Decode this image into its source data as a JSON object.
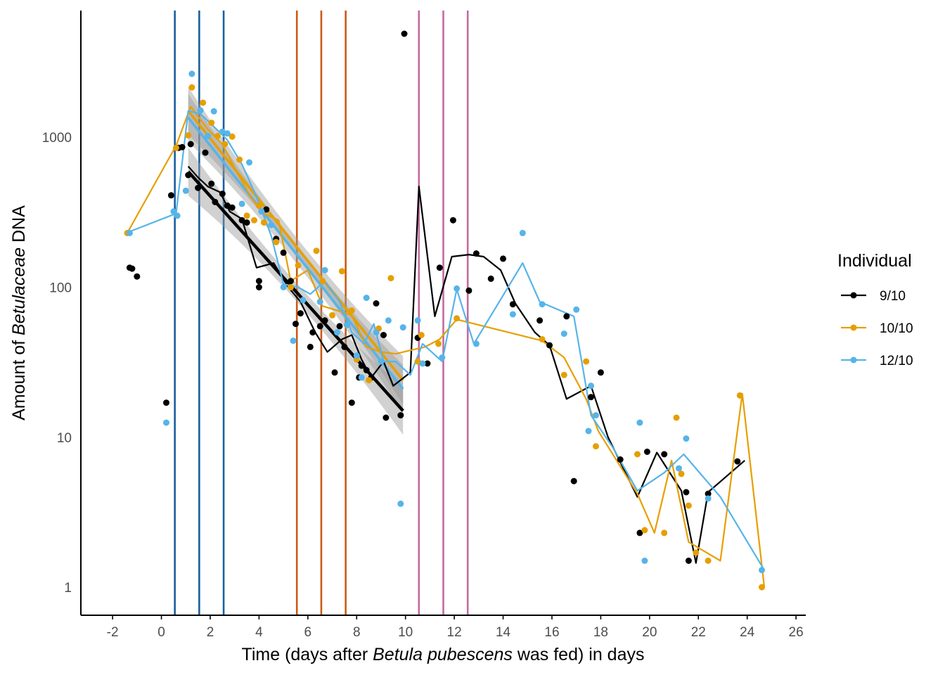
{
  "chart_data": {
    "type": "scatter",
    "xlabel": {
      "prefix": "Time (days after ",
      "italic": "Betula pubescens",
      "suffix": " was fed) in days"
    },
    "ylabel": {
      "prefix": "Amount of ",
      "italic": "Betulaceae",
      "suffix": " DNA"
    },
    "y_scale": "log10",
    "xlim": [
      -3.3,
      26.4
    ],
    "ylim": [
      0.65,
      7000
    ],
    "x_ticks": [
      -2,
      0,
      2,
      4,
      6,
      8,
      10,
      12,
      14,
      16,
      18,
      20,
      22,
      24,
      26
    ],
    "x_tick_labels": [
      "-2",
      "0",
      "2",
      "4",
      "6",
      "8",
      "10",
      "12",
      "14",
      "16",
      "18",
      "20",
      "22",
      "24",
      "26"
    ],
    "y_ticks": [
      1,
      10,
      100,
      1000
    ],
    "y_tick_labels": [
      "1",
      "10",
      "100",
      "1000"
    ],
    "grid": false,
    "legend": {
      "title": "Individual",
      "position": "right"
    },
    "vertical_lines": [
      {
        "x": 0.55,
        "color": "#1a5f9e"
      },
      {
        "x": 1.55,
        "color": "#1a5f9e"
      },
      {
        "x": 2.55,
        "color": "#1a5f9e"
      },
      {
        "x": 5.55,
        "color": "#cc5a14"
      },
      {
        "x": 6.55,
        "color": "#cc5a14"
      },
      {
        "x": 7.55,
        "color": "#cc5a14"
      },
      {
        "x": 10.55,
        "color": "#c46aa0"
      },
      {
        "x": 11.55,
        "color": "#c46aa0"
      },
      {
        "x": 12.55,
        "color": "#c46aa0"
      }
    ],
    "series": [
      {
        "name": "9/10",
        "color": "#000000",
        "points": [
          [
            -1.3,
            135
          ],
          [
            -1.2,
            133
          ],
          [
            -1.0,
            118
          ],
          [
            0.2,
            17
          ],
          [
            0.4,
            410
          ],
          [
            0.7,
            850
          ],
          [
            0.85,
            860
          ],
          [
            1.1,
            560
          ],
          [
            1.2,
            900
          ],
          [
            1.5,
            460
          ],
          [
            1.8,
            790
          ],
          [
            2.05,
            490
          ],
          [
            2.2,
            370
          ],
          [
            2.5,
            420
          ],
          [
            2.7,
            350
          ],
          [
            2.9,
            340
          ],
          [
            3.3,
            280
          ],
          [
            3.5,
            270
          ],
          [
            4.0,
            110
          ],
          [
            4.0,
            100
          ],
          [
            4.3,
            330
          ],
          [
            4.7,
            210
          ],
          [
            5.0,
            170
          ],
          [
            5.3,
            110
          ],
          [
            5.5,
            57
          ],
          [
            5.7,
            67
          ],
          [
            6.1,
            40
          ],
          [
            6.2,
            50
          ],
          [
            6.5,
            55
          ],
          [
            6.7,
            60
          ],
          [
            7.1,
            27
          ],
          [
            7.3,
            55
          ],
          [
            7.5,
            40
          ],
          [
            7.8,
            17
          ],
          [
            8.1,
            25
          ],
          [
            8.2,
            30
          ],
          [
            8.4,
            28
          ],
          [
            8.6,
            25
          ],
          [
            8.8,
            78
          ],
          [
            9.1,
            48
          ],
          [
            9.2,
            13.5
          ],
          [
            9.8,
            14
          ],
          [
            9.95,
            4900
          ],
          [
            10.5,
            46
          ],
          [
            10.9,
            31
          ],
          [
            11.4,
            135
          ],
          [
            11.95,
            280
          ],
          [
            12.6,
            95
          ],
          [
            12.9,
            168
          ],
          [
            13.5,
            114
          ],
          [
            14.0,
            155
          ],
          [
            14.4,
            77
          ],
          [
            15.5,
            60
          ],
          [
            15.9,
            41
          ],
          [
            16.6,
            64
          ],
          [
            16.9,
            5.1
          ],
          [
            17.6,
            18.5
          ],
          [
            18.0,
            27
          ],
          [
            18.8,
            7.1
          ],
          [
            19.6,
            2.3
          ],
          [
            19.9,
            8.0
          ],
          [
            20.6,
            7.7
          ],
          [
            21.5,
            4.3
          ],
          [
            21.6,
            1.5
          ],
          [
            22.4,
            4.2
          ],
          [
            23.6,
            6.9
          ]
        ],
        "line": [
          [
            1.1,
            640
          ],
          [
            1.5,
            540
          ],
          [
            1.9,
            470
          ],
          [
            2.4,
            430
          ],
          [
            2.8,
            320
          ],
          [
            3.3,
            285
          ],
          [
            3.9,
            135
          ],
          [
            4.6,
            145
          ],
          [
            5.2,
            100
          ],
          [
            5.7,
            80
          ],
          [
            6.3,
            50
          ],
          [
            6.8,
            37
          ],
          [
            7.4,
            45
          ],
          [
            7.8,
            48
          ],
          [
            8.2,
            33
          ],
          [
            8.6,
            25
          ],
          [
            9.1,
            32
          ],
          [
            9.5,
            22
          ],
          [
            10.2,
            27
          ],
          [
            10.55,
            470
          ],
          [
            11.2,
            64
          ],
          [
            11.9,
            160
          ],
          [
            12.6,
            165
          ],
          [
            13.2,
            160
          ],
          [
            13.9,
            130
          ],
          [
            14.5,
            78
          ],
          [
            15.3,
            50
          ],
          [
            15.9,
            41
          ],
          [
            16.6,
            18
          ],
          [
            17.6,
            22
          ],
          [
            18.3,
            10
          ],
          [
            19.5,
            4.0
          ],
          [
            20.3,
            7.9
          ],
          [
            21.3,
            4.4
          ],
          [
            21.9,
            1.45
          ],
          [
            22.4,
            4.3
          ],
          [
            23.9,
            7.0
          ]
        ],
        "fit": [
          [
            1.1,
            590
          ],
          [
            9.9,
            15
          ]
        ]
      },
      {
        "name": "10/10",
        "color": "#e69f00",
        "points": [
          [
            -1.4,
            230
          ],
          [
            0.6,
            850
          ],
          [
            1.1,
            1030
          ],
          [
            1.25,
            2150
          ],
          [
            1.7,
            1700
          ],
          [
            2.05,
            1250
          ],
          [
            2.3,
            1020
          ],
          [
            2.6,
            900
          ],
          [
            2.9,
            1010
          ],
          [
            3.2,
            710
          ],
          [
            3.5,
            300
          ],
          [
            3.8,
            280
          ],
          [
            4.0,
            350
          ],
          [
            4.2,
            270
          ],
          [
            4.7,
            200
          ],
          [
            5.3,
            100
          ],
          [
            5.6,
            140
          ],
          [
            6.35,
            175
          ],
          [
            6.6,
            110
          ],
          [
            7.0,
            65
          ],
          [
            7.4,
            128
          ],
          [
            7.8,
            70
          ],
          [
            8.0,
            33
          ],
          [
            8.5,
            24
          ],
          [
            8.9,
            53
          ],
          [
            9.4,
            115
          ],
          [
            10.5,
            32
          ],
          [
            10.65,
            48
          ],
          [
            11.35,
            42
          ],
          [
            12.1,
            62
          ],
          [
            15.6,
            45
          ],
          [
            16.5,
            26
          ],
          [
            17.4,
            32
          ],
          [
            17.6,
            22
          ],
          [
            17.8,
            8.7
          ],
          [
            19.5,
            7.7
          ],
          [
            19.8,
            2.4
          ],
          [
            20.6,
            2.3
          ],
          [
            21.1,
            13.5
          ],
          [
            21.3,
            5.7
          ],
          [
            21.6,
            3.5
          ],
          [
            21.9,
            1.7
          ],
          [
            22.4,
            1.5
          ],
          [
            23.7,
            19
          ],
          [
            24.6,
            1.0
          ]
        ],
        "line": [
          [
            -1.4,
            230
          ],
          [
            0.6,
            880
          ],
          [
            1.2,
            1600
          ],
          [
            1.9,
            1130
          ],
          [
            2.5,
            900
          ],
          [
            3.1,
            580
          ],
          [
            3.7,
            390
          ],
          [
            4.2,
            310
          ],
          [
            4.8,
            280
          ],
          [
            5.3,
            110
          ],
          [
            6.0,
            130
          ],
          [
            6.6,
            75
          ],
          [
            7.2,
            70
          ],
          [
            7.8,
            65
          ],
          [
            8.4,
            40
          ],
          [
            9.0,
            37
          ],
          [
            9.6,
            36
          ],
          [
            10.2,
            38
          ],
          [
            10.8,
            40
          ],
          [
            11.4,
            45
          ],
          [
            12.1,
            61
          ],
          [
            15.6,
            44
          ],
          [
            16.5,
            34
          ],
          [
            17.4,
            18
          ],
          [
            17.9,
            11
          ],
          [
            19.5,
            4.2
          ],
          [
            20.2,
            2.3
          ],
          [
            20.9,
            7.0
          ],
          [
            21.6,
            2.0
          ],
          [
            22.9,
            1.5
          ],
          [
            23.8,
            19.5
          ],
          [
            24.7,
            1.0
          ]
        ],
        "fit": [
          [
            1.1,
            1500
          ],
          [
            9.9,
            24
          ]
        ]
      },
      {
        "name": "12/10",
        "color": "#56b4e9",
        "points": [
          [
            -1.3,
            230
          ],
          [
            0.2,
            12.5
          ],
          [
            0.5,
            320
          ],
          [
            0.65,
            300
          ],
          [
            1.0,
            440
          ],
          [
            1.25,
            2650
          ],
          [
            1.6,
            1510
          ],
          [
            1.9,
            1020
          ],
          [
            2.15,
            1490
          ],
          [
            2.5,
            1090
          ],
          [
            2.7,
            1060
          ],
          [
            3.3,
            360
          ],
          [
            3.6,
            680
          ],
          [
            4.1,
            320
          ],
          [
            4.5,
            260
          ],
          [
            5.0,
            100
          ],
          [
            5.4,
            44
          ],
          [
            5.8,
            82
          ],
          [
            6.5,
            80
          ],
          [
            6.7,
            130
          ],
          [
            7.2,
            50
          ],
          [
            7.6,
            56
          ],
          [
            8.0,
            35
          ],
          [
            8.2,
            25
          ],
          [
            8.4,
            85
          ],
          [
            8.8,
            50
          ],
          [
            9.0,
            32
          ],
          [
            9.3,
            60
          ],
          [
            9.8,
            3.6
          ],
          [
            9.9,
            54
          ],
          [
            10.5,
            60
          ],
          [
            10.7,
            31
          ],
          [
            11.5,
            34
          ],
          [
            12.1,
            98
          ],
          [
            12.9,
            42
          ],
          [
            14.4,
            66
          ],
          [
            14.8,
            230
          ],
          [
            15.6,
            77
          ],
          [
            16.5,
            49
          ],
          [
            17.0,
            71
          ],
          [
            17.5,
            11
          ],
          [
            17.6,
            22
          ],
          [
            17.8,
            14
          ],
          [
            19.6,
            12.5
          ],
          [
            19.8,
            1.5
          ],
          [
            21.2,
            6.2
          ],
          [
            21.5,
            9.8
          ],
          [
            22.4,
            3.9
          ],
          [
            24.6,
            1.3
          ]
        ],
        "line": [
          [
            -1.3,
            235
          ],
          [
            0.6,
            310
          ],
          [
            1.1,
            1500
          ],
          [
            1.6,
            1430
          ],
          [
            2.1,
            1200
          ],
          [
            2.7,
            960
          ],
          [
            3.3,
            660
          ],
          [
            3.9,
            400
          ],
          [
            4.5,
            220
          ],
          [
            5.0,
            105
          ],
          [
            5.6,
            100
          ],
          [
            6.1,
            90
          ],
          [
            6.7,
            110
          ],
          [
            7.3,
            80
          ],
          [
            7.8,
            50
          ],
          [
            8.3,
            42
          ],
          [
            8.7,
            57
          ],
          [
            9.1,
            32
          ],
          [
            9.6,
            32
          ],
          [
            10.2,
            26
          ],
          [
            10.7,
            42
          ],
          [
            11.5,
            32
          ],
          [
            12.1,
            97
          ],
          [
            12.8,
            42
          ],
          [
            13.9,
            83
          ],
          [
            14.8,
            145
          ],
          [
            15.5,
            80
          ],
          [
            16.9,
            64
          ],
          [
            17.6,
            14
          ],
          [
            18.5,
            8.5
          ],
          [
            19.5,
            4.4
          ],
          [
            20.6,
            5.8
          ],
          [
            21.4,
            7.7
          ],
          [
            22.9,
            4.0
          ],
          [
            24.7,
            1.3
          ]
        ],
        "fit": [
          [
            1.1,
            1350
          ],
          [
            9.9,
            21
          ]
        ]
      }
    ]
  }
}
